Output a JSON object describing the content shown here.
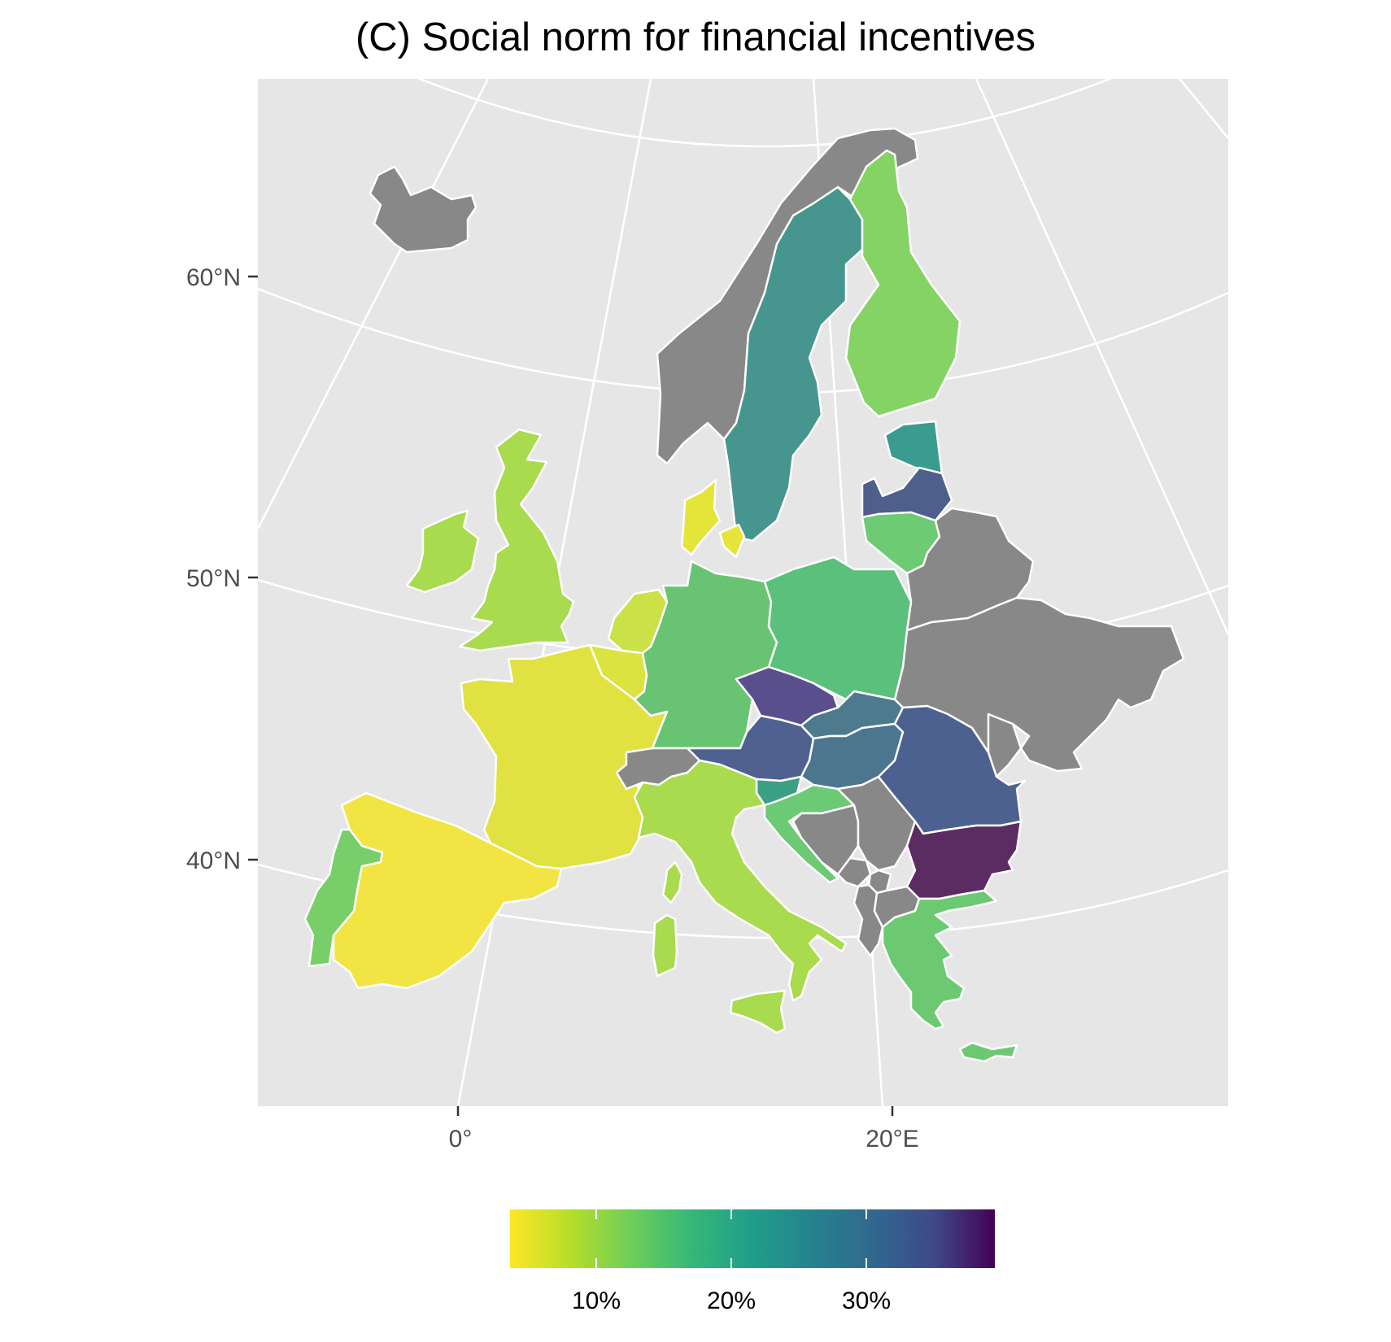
{
  "title": "(C) Social norm for financial incentives",
  "map": {
    "projection": "conic",
    "latitude_labels": [
      "60°N",
      "50°N",
      "40°N"
    ],
    "longitude_labels": [
      "0°",
      "20°E"
    ],
    "color_scale": {
      "palette": "viridis-reversed",
      "domain_percent": [
        3,
        39
      ],
      "ticks_percent": [
        10,
        20,
        30
      ],
      "tick_labels": [
        "10%",
        "20%",
        "30%"
      ],
      "missing_color": "#888888"
    },
    "regions": [
      {
        "name": "Norway",
        "value": null,
        "color": "#888888"
      },
      {
        "name": "Iceland",
        "value": null,
        "color": "#888888"
      },
      {
        "name": "Sweden",
        "value": 20,
        "color": "#46968f"
      },
      {
        "name": "Finland",
        "value": 11,
        "color": "#85d365"
      },
      {
        "name": "Estonia",
        "value": 20,
        "color": "#3a9c8f"
      },
      {
        "name": "Latvia",
        "value": 28,
        "color": "#4e5f8c"
      },
      {
        "name": "Lithuania",
        "value": 13,
        "color": "#6ccb73"
      },
      {
        "name": "Belarus",
        "value": null,
        "color": "#888888"
      },
      {
        "name": "Ukraine",
        "value": null,
        "color": "#888888"
      },
      {
        "name": "Moldova",
        "value": null,
        "color": "#888888"
      },
      {
        "name": "Denmark",
        "value": 4,
        "color": "#e5e43a"
      },
      {
        "name": "Ireland",
        "value": 8,
        "color": "#a8db4d"
      },
      {
        "name": "United Kingdom",
        "value": 8,
        "color": "#a8db4d"
      },
      {
        "name": "Netherlands",
        "value": 6,
        "color": "#cae147"
      },
      {
        "name": "Belgium",
        "value": 5,
        "color": "#dbe340"
      },
      {
        "name": "France",
        "value": 5,
        "color": "#e1e141"
      },
      {
        "name": "Spain",
        "value": 3,
        "color": "#f2e543"
      },
      {
        "name": "Portugal",
        "value": 13,
        "color": "#78cf6a"
      },
      {
        "name": "Germany",
        "value": 14,
        "color": "#68c472"
      },
      {
        "name": "Poland",
        "value": 15,
        "color": "#5ac07b"
      },
      {
        "name": "Czechia",
        "value": 33,
        "color": "#5a4f8d"
      },
      {
        "name": "Slovakia",
        "value": 24,
        "color": "#4e7a8e"
      },
      {
        "name": "Austria",
        "value": 28,
        "color": "#4f6190"
      },
      {
        "name": "Hungary",
        "value": 24,
        "color": "#4c768f"
      },
      {
        "name": "Switzerland",
        "value": null,
        "color": "#888888"
      },
      {
        "name": "Italy",
        "value": 8,
        "color": "#a8db4d"
      },
      {
        "name": "Slovenia",
        "value": 18,
        "color": "#3aa083"
      },
      {
        "name": "Croatia",
        "value": 14,
        "color": "#6cc974"
      },
      {
        "name": "Bosnia and Herzegovina",
        "value": null,
        "color": "#888888"
      },
      {
        "name": "Serbia",
        "value": null,
        "color": "#888888"
      },
      {
        "name": "Montenegro",
        "value": null,
        "color": "#888888"
      },
      {
        "name": "Kosovo",
        "value": null,
        "color": "#888888"
      },
      {
        "name": "Albania",
        "value": null,
        "color": "#888888"
      },
      {
        "name": "North Macedonia",
        "value": null,
        "color": "#888888"
      },
      {
        "name": "Romania",
        "value": 28,
        "color": "#4c6190"
      },
      {
        "name": "Bulgaria",
        "value": 38,
        "color": "#5b2c62"
      },
      {
        "name": "Greece",
        "value": 14,
        "color": "#6cc972"
      }
    ]
  }
}
